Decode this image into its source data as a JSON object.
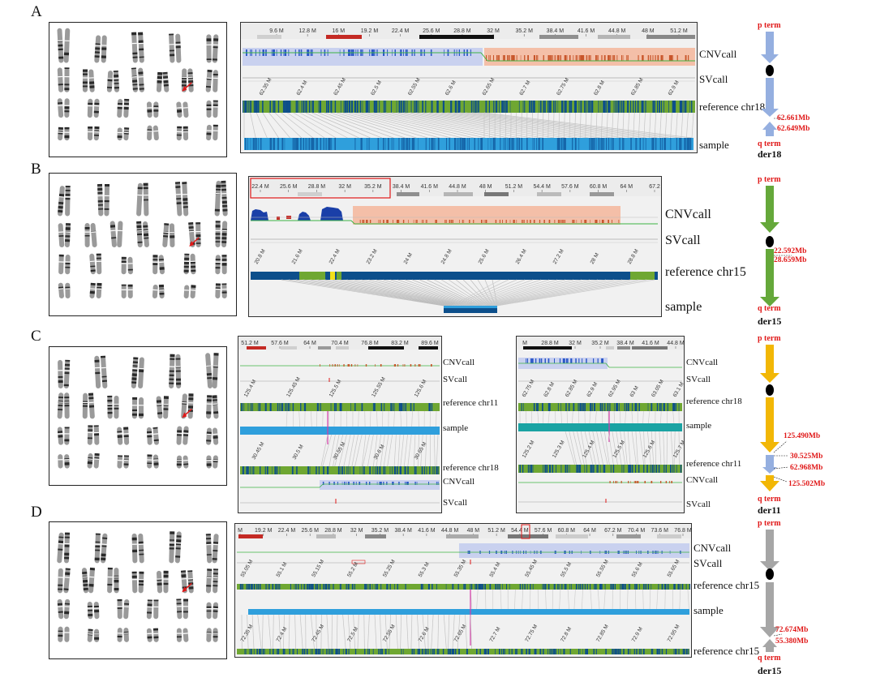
{
  "panels": [
    {
      "id": "A",
      "letter": "A",
      "chromosome_number": "18",
      "track_labels": [
        "CNVcall",
        "SVcall",
        "reference chr18",
        "sample"
      ],
      "top_ticks": [
        "9.6 M",
        "12.8 M",
        "16 M",
        "19.2 M",
        "22.4 M",
        "25.6 M",
        "28.8 M",
        "32 M",
        "35.2 M",
        "38.4 M",
        "41.6 M",
        "44.8 M",
        "48 M",
        "51.2 M"
      ],
      "ref_ticks": [
        "62.35 M",
        "62.4 M",
        "62.45 M",
        "62.5 M",
        "62.55 M",
        "62.6 M",
        "62.65 M",
        "62.7 M",
        "62.75 M",
        "62.8 M",
        "62.85 M",
        "62.9 M"
      ],
      "derivative": {
        "p_term": "p term",
        "q_term": "q term",
        "name": "der18",
        "breakpoints": [
          "62.661Mb",
          "62.649Mb"
        ],
        "color": "#95afe0"
      }
    },
    {
      "id": "B",
      "letter": "B",
      "chromosome_number": "15",
      "track_labels": [
        "CNVcall",
        "SVcall",
        "reference chr15",
        "sample"
      ],
      "top_ticks": [
        "22.4 M",
        "25.6 M",
        "28.8 M",
        "32 M",
        "35.2 M",
        "38.4 M",
        "41.6 M",
        "44.8 M",
        "48 M",
        "51.2 M",
        "54.4 M",
        "57.6 M",
        "60.8 M",
        "64 M",
        "67.2"
      ],
      "ref_ticks": [
        "20.8 M",
        "21.6 M",
        "22.4 M",
        "23.2 M",
        "24 M",
        "24.8 M",
        "25.6 M",
        "26.4 M",
        "27.2 M",
        "28 M",
        "28.8 M"
      ],
      "derivative": {
        "p_term": "p term",
        "q_term": "q term",
        "name": "der15",
        "breakpoints": [
          "22.592Mb",
          "28.659Mb"
        ],
        "color": "#65a83a"
      }
    },
    {
      "id": "C",
      "letter": "C",
      "left_track_labels": [
        "CNVcall",
        "SVcall",
        "reference chr11",
        "sample",
        "reference chr18",
        "CNVcall",
        "SVcall"
      ],
      "right_track_labels": [
        "CNVcall",
        "SVcall",
        "reference chr18",
        "sample",
        "reference chr11",
        "CNVcall",
        "SVcall"
      ],
      "left_top_ticks": [
        "51.2 M",
        "57.6 M",
        "64 M",
        "70.4 M",
        "76.8 M",
        "83.2 M",
        "89.6 M"
      ],
      "right_top_ticks": [
        "M",
        "28.8 M",
        "32 M",
        "35.2 M",
        "38.4 M",
        "41.6 M",
        "44.8 M"
      ],
      "derivative": {
        "p_term": "p term",
        "q_term": "q term",
        "name": "der11",
        "breakpoints": [
          "125.490Mb",
          "30.525Mb",
          "62.968Mb",
          "125.502Mb"
        ],
        "color": "#f2b705",
        "insert_color": "#95afe0"
      }
    },
    {
      "id": "D",
      "letter": "D",
      "chromosome_number": "15",
      "track_labels": [
        "CNVcall",
        "SVcall",
        "reference chr15",
        "sample",
        "reference chr15"
      ],
      "top_ticks": [
        "M",
        "19.2 M",
        "22.4 M",
        "25.6 M",
        "28.8 M",
        "32 M",
        "35.2 M",
        "38.4 M",
        "41.6 M",
        "44.8 M",
        "48 M",
        "51.2 M",
        "54.4 M",
        "57.6 M",
        "60.8 M",
        "64 M",
        "67.2 M",
        "70.4 M",
        "73.6 M",
        "76.8 M"
      ],
      "ref_ticks": [
        "55.05 M",
        "55.1 M",
        "55.15 M",
        "55.2 M",
        "55.25 M",
        "55.3 M",
        "55.35 M",
        "55.4 M",
        "55.45 M",
        "55.5 M",
        "55.55 M",
        "55.6 M",
        "55.65 M"
      ],
      "ref2_ticks": [
        "72.35 M",
        "72.4 M",
        "72.45 M",
        "72.5 M",
        "72.55 M",
        "72.6 M",
        "72.65 M",
        "72.7 M",
        "72.75 M",
        "72.8 M",
        "72.85 M",
        "72.9 M",
        "72.95 M"
      ],
      "derivative": {
        "p_term": "p term",
        "q_term": "q term",
        "name": "der15",
        "breakpoints": [
          "72.674Mb",
          "55.380Mb"
        ],
        "color": "#a6a6a6"
      }
    }
  ],
  "colors": {
    "reference_green": "#6fa732",
    "reference_navy": "#0d4f8b",
    "sample_blue": "#2f9fdc",
    "sample_teal": "#1aa3a3",
    "cnv_gain": "#f4bfa8",
    "cnv_loss": "#c9d1ef",
    "breakpoint_red": "#e01818",
    "link_gray": "#bfbfbf"
  }
}
